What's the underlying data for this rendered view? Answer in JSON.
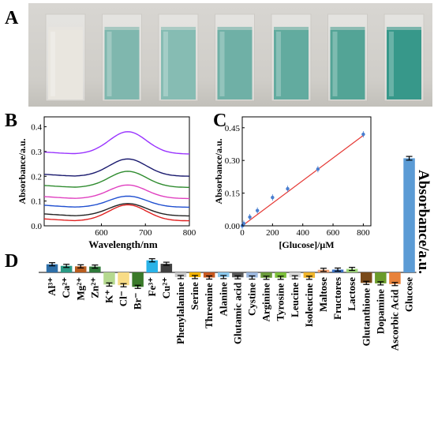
{
  "panels": {
    "a": "A",
    "b": "B",
    "c": "C",
    "d": "D"
  },
  "photo": {
    "cuvette_count": 7,
    "cuvette_colors": [
      "#e9e6df",
      "#7fb7ae",
      "#86bcb3",
      "#6fb0a6",
      "#62ab9f",
      "#53a496",
      "#37988a"
    ]
  },
  "panelB": {
    "xlabel": "Wavelength/nm",
    "ylabel": "Absorbance/a.u.",
    "xticks": [
      "600",
      "700",
      "800"
    ],
    "yticks": [
      "0.0",
      "0.1",
      "0.2",
      "0.3",
      "0.4"
    ],
    "xlim": [
      470,
      800
    ],
    "ylim": [
      0,
      0.44
    ],
    "curves": [
      {
        "color": "#9933ff",
        "base": 0.29,
        "peak": 0.38
      },
      {
        "color": "#1a1a6e",
        "base": 0.2,
        "peak": 0.27
      },
      {
        "color": "#2e8b2e",
        "base": 0.155,
        "peak": 0.22
      },
      {
        "color": "#e040c0",
        "base": 0.11,
        "peak": 0.165
      },
      {
        "color": "#1f4fd0",
        "base": 0.075,
        "peak": 0.12
      },
      {
        "color": "#222222",
        "base": 0.04,
        "peak": 0.09
      },
      {
        "color": "#e02020",
        "base": 0.02,
        "peak": 0.085
      }
    ]
  },
  "chart_data": [
    {
      "type": "scatter",
      "xlabel": "[Glucose]/μM",
      "ylabel": "Absorbance/a.u.",
      "xlim": [
        0,
        850
      ],
      "ylim": [
        0,
        0.5
      ],
      "xticks": [
        "0",
        "200",
        "400",
        "600",
        "800"
      ],
      "yticks": [
        "0.00",
        "0.15",
        "0.30",
        "0.45"
      ],
      "x": [
        0,
        10,
        50,
        100,
        200,
        300,
        500,
        800
      ],
      "y": [
        0.0,
        0.01,
        0.04,
        0.07,
        0.13,
        0.17,
        0.26,
        0.42
      ],
      "fit": {
        "color": "#e53935",
        "x": [
          0,
          800
        ],
        "y": [
          0.0,
          0.415
        ]
      },
      "marker_color": "#4a7fd0"
    },
    {
      "type": "bar",
      "ylabel": "Absorbance/a.u.",
      "categories": [
        "Al³⁺",
        "Ca²⁺",
        "Mg²⁺",
        "Zn²⁺",
        "K⁺",
        "Cl⁻",
        "Br⁻",
        "Fe³⁺",
        "Cu²⁺",
        "Phenylalanine",
        "Serine",
        "Threonine",
        "Alanine",
        "Glutamic acid",
        "Cystine",
        "Arginine",
        "Tyrosine",
        "Leucine",
        "Isoleucine",
        "Maltose",
        "Fructores",
        "Lactose",
        "Glutanthione",
        "Dopamine",
        "Ascorbic Acid",
        "Glucose"
      ],
      "values": [
        0.035,
        0.028,
        0.026,
        0.025,
        -0.052,
        -0.055,
        -0.062,
        0.052,
        0.037,
        -0.02,
        -0.02,
        -0.022,
        -0.02,
        -0.021,
        -0.022,
        -0.023,
        -0.023,
        -0.021,
        -0.023,
        0.011,
        0.012,
        0.015,
        -0.045,
        -0.047,
        -0.05,
        0.49
      ],
      "errors": [
        0.005,
        0.002,
        0.003,
        0.002,
        0.002,
        0.004,
        0.005,
        0.005,
        0.004,
        0.001,
        0.001,
        0.003,
        0.001,
        0.002,
        0.002,
        0.002,
        0.003,
        0.002,
        0.003,
        0.003,
        0.002,
        0.003,
        0.002,
        0.004,
        0.003,
        0.008
      ],
      "colors": [
        "#2e6fa8",
        "#2a9a85",
        "#b85c1e",
        "#2f7a3a",
        "#b5d98f",
        "#f8dc86",
        "#3a7a2a",
        "#29b3e8",
        "#404040",
        "#c8c8c8",
        "#f4b400",
        "#c8591f",
        "#8cc9ee",
        "#595959",
        "#9db8df",
        "#6a9b3a",
        "#7cbf3a",
        "#d8d8d8",
        "#f0b429",
        "#f0a070",
        "#3a6fc0",
        "#9ed67a",
        "#7a4a1a",
        "#6a9b2a",
        "#e8823a",
        "#5b9bd5"
      ]
    }
  ]
}
